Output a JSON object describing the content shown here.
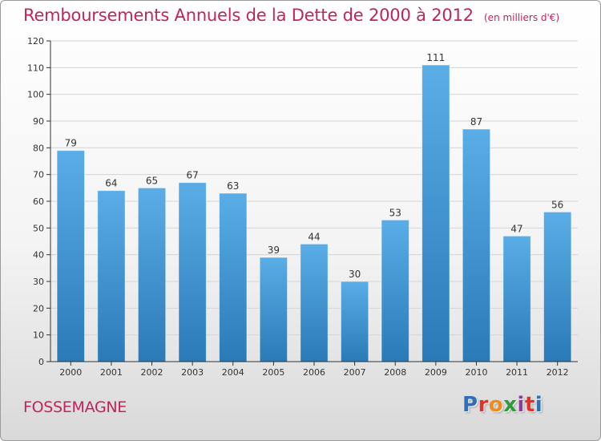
{
  "title": {
    "main": "Remboursements Annuels de la Dette de 2000 à 2012",
    "unit": "(en milliers d'€)"
  },
  "commune": "FOSSEMAGNE",
  "logo": {
    "text": "Proxiti",
    "letter_colors": [
      "#2f6fb5",
      "#e2312d",
      "#f08a1c",
      "#2e9c3e",
      "#8b3a9e",
      "#e2312d",
      "#2f6fb5"
    ]
  },
  "chart_data": {
    "type": "bar",
    "title": "Remboursements Annuels de la Dette de 2000 à 2012",
    "xlabel": "",
    "ylabel": "",
    "categories": [
      "2000",
      "2001",
      "2002",
      "2003",
      "2004",
      "2005",
      "2006",
      "2007",
      "2008",
      "2009",
      "2010",
      "2011",
      "2012"
    ],
    "values": [
      79,
      64,
      65,
      67,
      63,
      39,
      44,
      30,
      53,
      111,
      87,
      47,
      56
    ],
    "ylim": [
      0,
      120
    ],
    "yticks": [
      0,
      10,
      20,
      30,
      40,
      50,
      60,
      70,
      80,
      90,
      100,
      110,
      120
    ],
    "grid": true,
    "legend": "none",
    "colors": {
      "bar_light": "#5aade6",
      "bar_dark": "#2a7ab8",
      "grid": "#d4d4d4",
      "axis": "#333333",
      "text": "#333333"
    }
  }
}
